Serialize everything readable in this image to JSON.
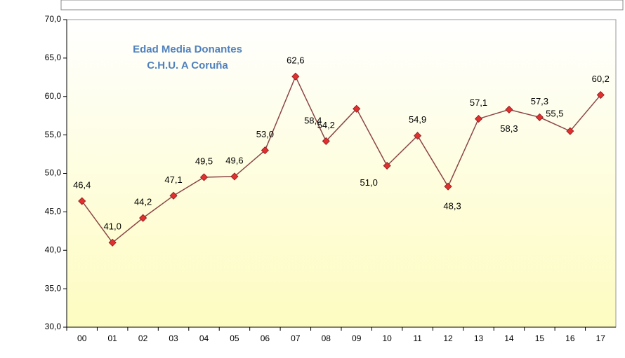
{
  "chart_data": {
    "type": "line",
    "title": "Edad Media Donantes",
    "subtitle": "C.H.U. A Coruña",
    "categories": [
      "00",
      "01",
      "02",
      "03",
      "04",
      "05",
      "06",
      "07",
      "08",
      "09",
      "10",
      "11",
      "12",
      "13",
      "14",
      "15",
      "16",
      "17"
    ],
    "values": [
      46.4,
      41.0,
      44.2,
      47.1,
      49.5,
      49.6,
      53.0,
      62.6,
      54.2,
      58.4,
      51.0,
      54.9,
      48.3,
      57.1,
      58.3,
      57.3,
      55.5,
      60.2
    ],
    "value_labels": [
      "46,4",
      "41,0",
      "44,2",
      "47,1",
      "49,5",
      "49,6",
      "53,0",
      "62,6",
      "54,2",
      "58,4",
      "51,0",
      "54,9",
      "48,3",
      "57,1",
      "58,3",
      "57,3",
      "55,5",
      "60,2"
    ],
    "color": "#8b4545",
    "marker_color": "#e03030",
    "ylim": [
      30,
      70
    ],
    "yticks": [
      {
        "value": 30,
        "label": "30,0"
      },
      {
        "value": 35,
        "label": "35,0"
      },
      {
        "value": 40,
        "label": "40,0"
      },
      {
        "value": 45,
        "label": "45,0"
      },
      {
        "value": 50,
        "label": "50,0"
      },
      {
        "value": 55,
        "label": "55,0"
      },
      {
        "value": 60,
        "label": "60,0"
      },
      {
        "value": 65,
        "label": "65,0"
      },
      {
        "value": 70,
        "label": "70,0"
      }
    ],
    "grid": false
  }
}
